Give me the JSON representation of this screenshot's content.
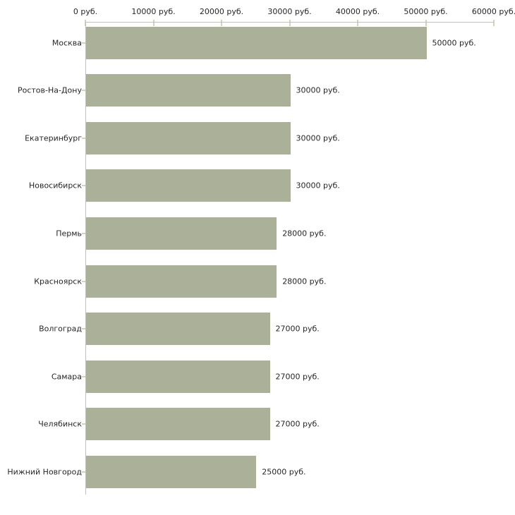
{
  "chart_data": {
    "type": "bar",
    "orientation": "horizontal",
    "title": "",
    "xlabel": "",
    "ylabel": "",
    "unit": "руб.",
    "categories": [
      "Москва",
      "Ростов-На-Дону",
      "Екатеринбург",
      "Новосибирск",
      "Пермь",
      "Красноярск",
      "Волгоград",
      "Самара",
      "Челябинск",
      "Нижний Новгород"
    ],
    "values": [
      50000,
      30000,
      30000,
      30000,
      28000,
      28000,
      27000,
      27000,
      27000,
      25000
    ],
    "value_labels": [
      "50000 руб.",
      "30000 руб.",
      "30000 руб.",
      "30000 руб.",
      "28000 руб.",
      "28000 руб.",
      "27000 руб.",
      "27000 руб.",
      "27000 руб.",
      "25000 руб."
    ],
    "x_ticks": [
      0,
      10000,
      20000,
      30000,
      40000,
      50000,
      60000
    ],
    "x_tick_labels": [
      "0 руб.",
      "10000 руб.",
      "20000 руб.",
      "30000 руб.",
      "40000 руб.",
      "50000 руб.",
      "60000 руб."
    ],
    "xlim": [
      0,
      60000
    ],
    "grid": false,
    "legend": "none",
    "axis_position": "top-left",
    "colors": {
      "bar": "#abb198",
      "axis_line": "#c0c0c0",
      "tick": "#d3d3bc",
      "text": "#262626",
      "background": "#ffffff"
    }
  }
}
